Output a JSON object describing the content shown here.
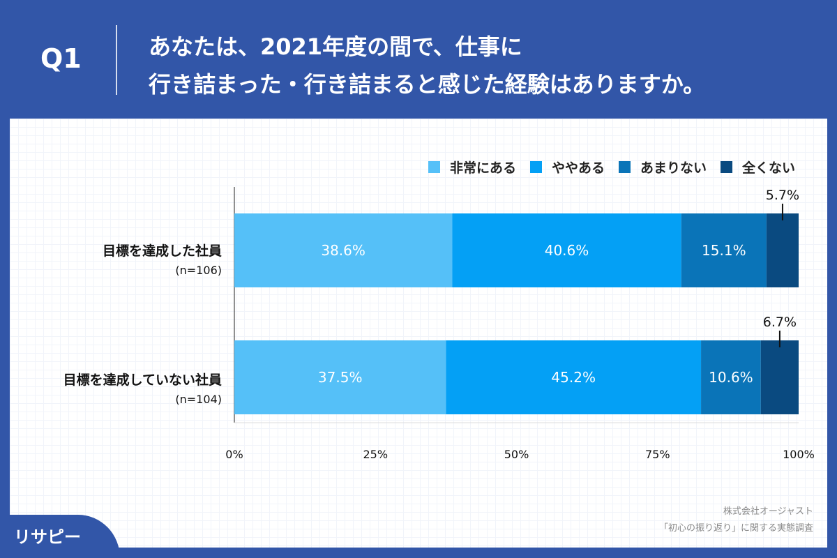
{
  "header": {
    "q": "Q1",
    "title_line1": "あなたは、2021年度の間で、仕事に",
    "title_line2": "行き詰まった・行き詰まると感じた経験はありますか。"
  },
  "chart_data": {
    "type": "bar",
    "orientation": "horizontal",
    "stacked": true,
    "categories": [
      {
        "label": "目標を達成した社員",
        "n": "(n=106)"
      },
      {
        "label": "目標を達成していない社員",
        "n": "(n=104)"
      }
    ],
    "series": [
      {
        "name": "非常にある",
        "color": "#55c0f8",
        "values": [
          38.6,
          37.5
        ]
      },
      {
        "name": "ややある",
        "color": "#04a0f5",
        "values": [
          40.6,
          45.2
        ]
      },
      {
        "name": "あまりない",
        "color": "#0a74b8",
        "values": [
          15.1,
          10.6
        ]
      },
      {
        "name": "全くない",
        "color": "#0a4a80",
        "values": [
          5.7,
          6.7
        ]
      }
    ],
    "xticks": [
      "0%",
      "25%",
      "50%",
      "75%",
      "100%"
    ],
    "xlim": [
      0,
      100
    ],
    "legend": "top-right"
  },
  "footer": {
    "company": "株式会社オージャスト",
    "survey": "「初心の振り返り」に関する実態調査",
    "logo": "リサピー"
  }
}
